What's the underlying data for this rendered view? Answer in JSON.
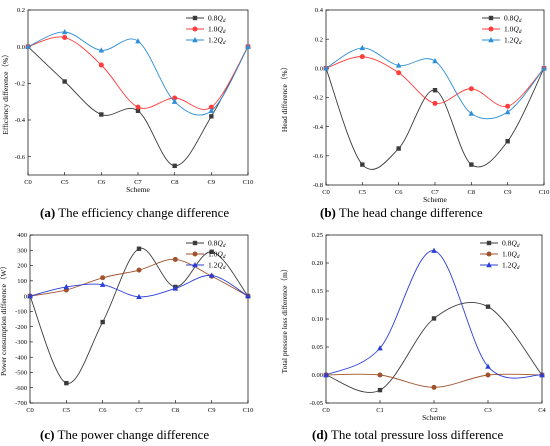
{
  "colors": {
    "0.8": "#3b3b3b",
    "1.0": "#ff3b3b",
    "1.2": "#2e8fd6",
    "1.0b": "#a0522d",
    "1.2b": "#2b3fd6"
  },
  "chart_data": [
    {
      "id": "a",
      "type": "line",
      "title_prefix": "(a)",
      "title": "The efficiency change difference",
      "xlabel": "Scheme",
      "ylabel": "Efficiency difference（%）",
      "categories": [
        "C0",
        "C5",
        "C6",
        "C7",
        "C8",
        "C9",
        "C10"
      ],
      "ylim": [
        -0.7,
        0.2
      ],
      "yticks": [
        "-0.6",
        "-0.4",
        "-0.2",
        "0.0",
        "0.2"
      ],
      "legend_position": "top-right",
      "series": [
        {
          "name": "0.8",
          "marker": "square",
          "color": "#3b3b3b",
          "values": [
            0.0,
            -0.19,
            -0.37,
            -0.35,
            -0.65,
            -0.38,
            0.0
          ]
        },
        {
          "name": "1.0",
          "marker": "circle",
          "color": "#ff3b3b",
          "values": [
            0.0,
            0.05,
            -0.1,
            -0.33,
            -0.28,
            -0.33,
            0.0
          ]
        },
        {
          "name": "1.2",
          "marker": "triangle",
          "color": "#2e8fd6",
          "values": [
            0.0,
            0.08,
            -0.02,
            0.03,
            -0.3,
            -0.35,
            0.0
          ]
        }
      ]
    },
    {
      "id": "b",
      "type": "line",
      "title_prefix": "(b)",
      "title": "The head change difference",
      "xlabel": "Scheme",
      "ylabel": "Head difference（%）",
      "categories": [
        "C0",
        "C5",
        "C6",
        "C7",
        "C8",
        "C9",
        "C10"
      ],
      "ylim": [
        -0.8,
        0.4
      ],
      "yticks": [
        "-0.8",
        "-0.6",
        "-0.4",
        "-0.2",
        "0.0",
        "0.2",
        "0.4"
      ],
      "legend_position": "top-right",
      "series": [
        {
          "name": "0.8",
          "marker": "square",
          "color": "#3b3b3b",
          "values": [
            0.0,
            -0.66,
            -0.55,
            -0.15,
            -0.66,
            -0.5,
            0.0
          ]
        },
        {
          "name": "1.0",
          "marker": "circle",
          "color": "#ff3b3b",
          "values": [
            0.0,
            0.08,
            -0.03,
            -0.24,
            -0.14,
            -0.26,
            0.0
          ]
        },
        {
          "name": "1.2",
          "marker": "triangle",
          "color": "#2e8fd6",
          "values": [
            0.0,
            0.14,
            0.02,
            0.05,
            -0.31,
            -0.3,
            0.0
          ]
        }
      ]
    },
    {
      "id": "c",
      "type": "line",
      "title_prefix": "(c)",
      "title": "The power change difference",
      "xlabel": "",
      "ylabel": "Power consumption difference（W）",
      "categories": [
        "C0",
        "C5",
        "C6",
        "C7",
        "C8",
        "C9",
        "C10"
      ],
      "ylim": [
        -700,
        400
      ],
      "yticks": [
        "-700",
        "-600",
        "-500",
        "-400",
        "-300",
        "-200",
        "-100",
        "0",
        "100",
        "200",
        "300",
        "400"
      ],
      "legend_position": "top-right",
      "series": [
        {
          "name": "0.8",
          "marker": "square",
          "color": "#3b3b3b",
          "values": [
            0,
            -570,
            -170,
            310,
            60,
            290,
            0
          ]
        },
        {
          "name": "1.0",
          "marker": "circle",
          "color": "#a0522d",
          "values": [
            0,
            40,
            120,
            170,
            240,
            130,
            0
          ]
        },
        {
          "name": "1.2",
          "marker": "triangle",
          "color": "#2b3fd6",
          "values": [
            0,
            60,
            75,
            -5,
            50,
            135,
            0
          ]
        }
      ]
    },
    {
      "id": "d",
      "type": "line",
      "title_prefix": "(d)",
      "title": "The total pressure loss difference",
      "xlabel": "Scheme",
      "ylabel": "Total pressure loss difference（m）",
      "categories": [
        "C0",
        "C1",
        "C2",
        "C3",
        "C4"
      ],
      "ylim": [
        -0.05,
        0.25
      ],
      "yticks": [
        "-0.05",
        "0.00",
        "0.05",
        "0.10",
        "0.15",
        "0.20",
        "0.25"
      ],
      "legend_position": "top-right",
      "series": [
        {
          "name": "0.8",
          "marker": "square",
          "color": "#3b3b3b",
          "values": [
            0.0,
            -0.027,
            0.101,
            0.122,
            0.0
          ]
        },
        {
          "name": "1.0",
          "marker": "circle",
          "color": "#a0522d",
          "values": [
            0.0,
            0.0,
            -0.022,
            0.0,
            0.0
          ]
        },
        {
          "name": "1.2",
          "marker": "triangle",
          "color": "#2b3fd6",
          "values": [
            0.0,
            0.048,
            0.222,
            0.015,
            0.0
          ]
        }
      ]
    }
  ]
}
